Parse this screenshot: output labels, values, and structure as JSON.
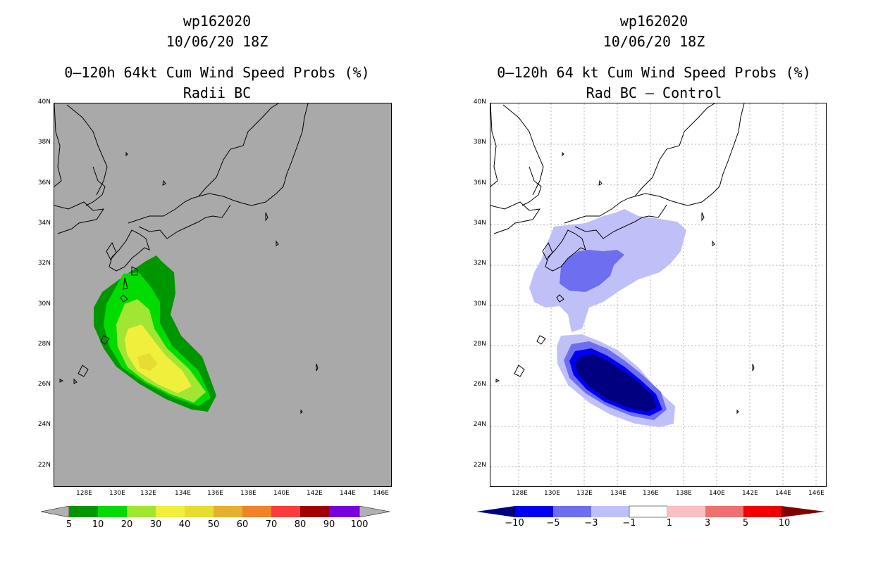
{
  "left_panel": {
    "storm_id": "wp162020",
    "datetime": "10/06/20 18Z",
    "product": "0–120h 64kt Cum Wind Speed Probs (%)",
    "subtitle": "Radii BC",
    "background_color": "#a9a9a9",
    "y_ticks": [
      "40N",
      "38N",
      "36N",
      "34N",
      "32N",
      "30N",
      "28N",
      "26N",
      "24N",
      "22N"
    ],
    "x_ticks": [
      "128E",
      "130E",
      "132E",
      "134E",
      "136E",
      "138E",
      "140E",
      "142E",
      "144E",
      "146E"
    ],
    "colorbar": {
      "colors": [
        "#009600",
        "#00dc00",
        "#a0e632",
        "#e6dc32",
        "#e6af2d",
        "#f08228",
        "#fa3c3c",
        "#c80000",
        "#a00000",
        "#7800dc"
      ],
      "labels": [
        "5",
        "10",
        "20",
        "30",
        "40",
        "50",
        "60",
        "70",
        "80",
        "90",
        "100"
      ]
    }
  },
  "right_panel": {
    "storm_id": "wp162020",
    "datetime": "10/06/20 18Z",
    "product": "0–120h 64 kt Cum Wind Speed Probs (%)",
    "subtitle": "Rad BC – Control",
    "background_color": "#ffffff",
    "y_ticks": [
      "40N",
      "38N",
      "36N",
      "34N",
      "32N",
      "30N",
      "28N",
      "26N",
      "24N",
      "22N"
    ],
    "x_ticks": [
      "128E",
      "130E",
      "132E",
      "134E",
      "136E",
      "138E",
      "140E",
      "142E",
      "144E",
      "146E"
    ],
    "colorbar": {
      "colors": [
        "#000080",
        "#0000f0",
        "#6e6ef0",
        "#c0c0f8",
        "#ffffff",
        "#f8c0c0",
        "#f07070",
        "#f00000",
        "#800000"
      ],
      "labels": [
        "−10",
        "−5",
        "−3",
        "−1",
        "1",
        "3",
        "5",
        "10"
      ]
    }
  }
}
